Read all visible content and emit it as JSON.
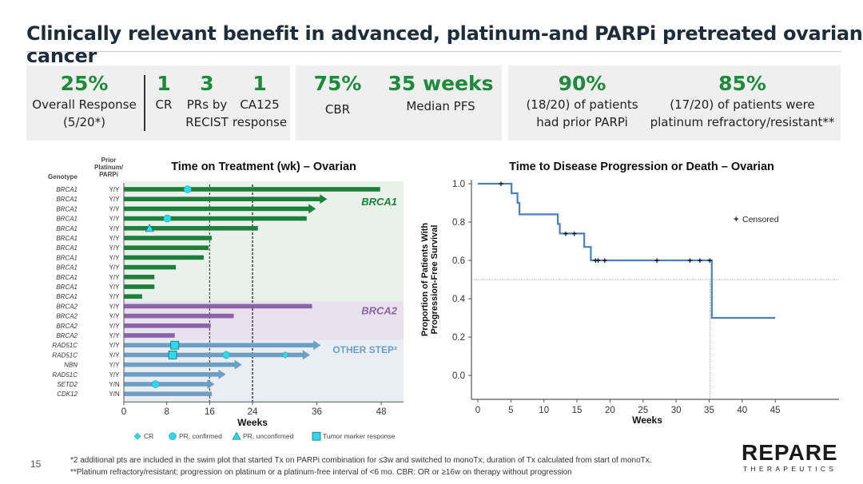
{
  "title": "Clinically relevant benefit in advanced, platinum-and PARPi pretreated ovarian cancer",
  "stats": {
    "orr": {
      "value": "25%",
      "label1": "Overall Response",
      "label2": "(5/20*)"
    },
    "cr": {
      "value": "1",
      "label": "CR"
    },
    "pr": {
      "value": "3",
      "label1": "PRs by",
      "label2": "RECIST"
    },
    "ca125": {
      "value": "1",
      "label1": "CA125",
      "label2": "response"
    },
    "cbr": {
      "value": "75%",
      "label": "CBR"
    },
    "pfs": {
      "value": "35 weeks",
      "label": "Median PFS"
    },
    "parp": {
      "value": "90%",
      "label1": "(18/20) of patients",
      "label2": "had prior PARPi"
    },
    "plat": {
      "value": "85%",
      "label1": "(17/20) of patients were",
      "label2": "platinum refractory/resistant**"
    }
  },
  "chart_data": [
    {
      "type": "bar",
      "subtype": "swimmer",
      "title": "Time on Treatment (wk) – Ovarian",
      "xlabel": "Weeks",
      "col_genotype": "Genotype",
      "col_prior": [
        "Prior",
        "Platinum/",
        "PARPi"
      ],
      "xticks": [
        0,
        8,
        16,
        24,
        36,
        48
      ],
      "xlim": [
        0,
        52
      ],
      "reference_lines": [
        16,
        24
      ],
      "groups": [
        {
          "name": "BRCA1",
          "color": "#1e7e3c",
          "bg": "#e8f2ea"
        },
        {
          "name": "BRCA2",
          "color": "#8a63a8",
          "bg": "#e9e2ee"
        },
        {
          "name": "OTHER STEP²",
          "color": "#6e9ec4",
          "bg": "#e8eef3"
        }
      ],
      "rows": [
        {
          "genotype": "BRCA1",
          "prior": "Y/Y",
          "group": 0,
          "weeks": 47.8,
          "ongoing": false,
          "events": [
            {
              "type": "pr_confirmed",
              "week": 11.9
            }
          ]
        },
        {
          "genotype": "BRCA1",
          "prior": "Y/Y",
          "group": 0,
          "weeks": 37.9,
          "ongoing": true,
          "events": []
        },
        {
          "genotype": "BRCA1",
          "prior": "Y/Y",
          "group": 0,
          "weeks": 35.8,
          "ongoing": true,
          "events": []
        },
        {
          "genotype": "BRCA1",
          "prior": "Y/Y",
          "group": 0,
          "weeks": 34.1,
          "ongoing": false,
          "events": [
            {
              "type": "pr_confirmed",
              "week": 8.1
            }
          ]
        },
        {
          "genotype": "BRCA1",
          "prior": "Y/Y",
          "group": 0,
          "weeks": 25,
          "ongoing": false,
          "events": [
            {
              "type": "pr_unconfirmed",
              "week": 4.8
            }
          ]
        },
        {
          "genotype": "BRCA1",
          "prior": "Y/Y",
          "group": 0,
          "weeks": 16.4,
          "ongoing": false,
          "events": []
        },
        {
          "genotype": "BRCA1",
          "prior": "Y/Y",
          "group": 0,
          "weeks": 15.8,
          "ongoing": false,
          "events": []
        },
        {
          "genotype": "BRCA1",
          "prior": "Y/Y",
          "group": 0,
          "weeks": 14.9,
          "ongoing": false,
          "events": []
        },
        {
          "genotype": "BRCA1",
          "prior": "Y/Y",
          "group": 0,
          "weeks": 9.7,
          "ongoing": false,
          "events": []
        },
        {
          "genotype": "BRCA1",
          "prior": "Y/Y",
          "group": 0,
          "weeks": 5.7,
          "ongoing": false,
          "events": []
        },
        {
          "genotype": "BRCA1",
          "prior": "Y/Y",
          "group": 0,
          "weeks": 5.7,
          "ongoing": false,
          "events": []
        },
        {
          "genotype": "BRCA1",
          "prior": "Y/Y",
          "group": 0,
          "weeks": 3.4,
          "ongoing": false,
          "events": []
        },
        {
          "genotype": "BRCA2",
          "prior": "Y/Y",
          "group": 1,
          "weeks": 35.1,
          "ongoing": false,
          "events": []
        },
        {
          "genotype": "BRCA2",
          "prior": "Y/Y",
          "group": 1,
          "weeks": 20.5,
          "ongoing": false,
          "events": []
        },
        {
          "genotype": "BRCA2",
          "prior": "Y/Y",
          "group": 1,
          "weeks": 16.2,
          "ongoing": false,
          "events": []
        },
        {
          "genotype": "BRCA2",
          "prior": "Y/Y",
          "group": 1,
          "weeks": 9.5,
          "ongoing": false,
          "events": []
        },
        {
          "genotype": "RAD51C",
          "prior": "Y/Y",
          "group": 2,
          "weeks": 36.7,
          "ongoing": true,
          "events": [
            {
              "type": "tumor_marker",
              "week": 9.5
            }
          ]
        },
        {
          "genotype": "RAD51C",
          "prior": "Y/Y",
          "group": 2,
          "weeks": 34.7,
          "ongoing": true,
          "events": [
            {
              "type": "tumor_marker",
              "week": 9.1
            },
            {
              "type": "pr_confirmed",
              "week": 19.1
            },
            {
              "type": "cr",
              "week": 30.1
            }
          ]
        },
        {
          "genotype": "NBN",
          "prior": "Y/Y",
          "group": 2,
          "weeks": 22,
          "ongoing": true,
          "events": []
        },
        {
          "genotype": "RAD51C",
          "prior": "Y/Y",
          "group": 2,
          "weeks": 19,
          "ongoing": true,
          "events": []
        },
        {
          "genotype": "SETD2",
          "prior": "Y/N",
          "group": 2,
          "weeks": 16.9,
          "ongoing": true,
          "events": [
            {
              "type": "pr_confirmed",
              "week": 5.9
            }
          ]
        },
        {
          "genotype": "CDK12",
          "prior": "Y/N",
          "group": 2,
          "weeks": 16.4,
          "ongoing": false,
          "events": []
        }
      ],
      "legend": [
        {
          "type": "cr",
          "label": "CR"
        },
        {
          "type": "pr_confirmed",
          "label": "PR, confirmed"
        },
        {
          "type": "pr_unconfirmed",
          "label": "PR, unconfirmed"
        },
        {
          "type": "tumor_marker",
          "label": "Tumor marker response"
        }
      ],
      "marker_color": "#33d6ee"
    },
    {
      "type": "line",
      "subtype": "kaplan-meier",
      "title": "Time to Disease Progression or Death – Ovarian",
      "xlabel": "Weeks",
      "ylabel": [
        "Proportion of Patients With",
        "Progression-Free Survival"
      ],
      "xticks": [
        0,
        5,
        10,
        15,
        20,
        25,
        30,
        35,
        40,
        45
      ],
      "yticks": [
        "1.0",
        "0.8",
        "0.6",
        "0.4",
        "0.2",
        "0.0"
      ],
      "xlim": [
        -1,
        50
      ],
      "ylim": [
        -0.12,
        1.0
      ],
      "steps": [
        [
          0,
          1.0
        ],
        [
          5.1,
          0.95
        ],
        [
          6.0,
          0.9
        ],
        [
          6.3,
          0.84
        ],
        [
          12.1,
          0.79
        ],
        [
          12.4,
          0.74
        ],
        [
          16.1,
          0.67
        ],
        [
          17.1,
          0.6
        ],
        [
          35.4,
          0.3
        ],
        [
          45,
          0.3
        ]
      ],
      "censored": [
        [
          3.5,
          1.0
        ],
        [
          13.3,
          0.74
        ],
        [
          14.6,
          0.74
        ],
        [
          17.8,
          0.6
        ],
        [
          18.2,
          0.6
        ],
        [
          19.2,
          0.6
        ],
        [
          27.1,
          0.6
        ],
        [
          32.1,
          0.6
        ],
        [
          33.6,
          0.6
        ],
        [
          35.1,
          0.6
        ]
      ],
      "median_line": 0.5,
      "median_week": 35.1,
      "legend": "Censored",
      "legend_position": "top-right",
      "color": "#4a7fc0"
    }
  ],
  "footnotes": [
    "*2 additional pts are included in the swim plot that started Tx on PARPi combination for ≤3w and switched to monoTx; duration of Tx calculated from start of monoTx.",
    "**Platinum refractory/resistant: progression on platinum or a platinum-free interval of <6 mo. CBR: OR or ≥16w on therapy without progression"
  ],
  "page_number": "15",
  "logo": {
    "name": "REPARE",
    "sub": "THERAPEUTICS"
  }
}
